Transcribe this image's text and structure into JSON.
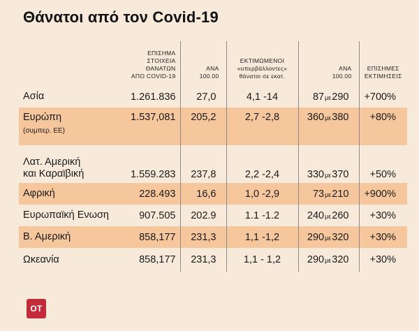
{
  "title": "Θάνατοι από τον Covid-19",
  "headers": [
    "",
    "ΕΠΙΣΗΜΑ ΣΤΟΙΧΕΙΑ ΘΑΝΑΤΩΝ ΑΠΟ COVID-19",
    "ΑΝΑ 100.00",
    "ΕΚΤΙΜΩΜΕΝΟΙ «υπερβάλλοντες» θάνατοι σε εκατ.",
    "ΑΝΑ 100.00",
    "ΕΠΙΣΗΜΕΣ ΕΚΤΙΜΗΣΕΙΣ"
  ],
  "header_parts": {
    "h1": [
      "ΕΠΙΣΗΜΑ",
      "ΣΤΟΙΧΕΙΑ",
      "ΘΑΝΑΤΩΝ",
      "ΑΠΟ COVID-19"
    ],
    "h2": [
      "ΑΝΑ",
      "100.00"
    ],
    "h3": [
      "ΕΚΤΙΜΩΜΕΝΟΙ",
      "«υπερβάλλοντες»",
      "θάνατοι σε εκατ."
    ],
    "h4": [
      "ΑΝΑ",
      "100.00"
    ],
    "h5": [
      "ΕΠΙΣΗΜΕΣ",
      "ΕΚΤΙΜΗΣΕΙΣ"
    ]
  },
  "connector": "με",
  "rows": [
    {
      "region": "Ασία",
      "region_sub": "",
      "official": "1.261.836",
      "per100k": "27,0",
      "excess": "4,1 -14",
      "per100k_low": "87",
      "per100k_high": "290",
      "estimates": "+700%",
      "shaded": false
    },
    {
      "region": "Ευρώπη",
      "region_sub": "(συμπερ. ΕΕ)",
      "official": "1.537,081",
      "per100k": "205,2",
      "excess": "2,7 -2,8",
      "per100k_low": "360",
      "per100k_high": "380",
      "estimates": "+80%",
      "shaded": true
    },
    {
      "region": "Λατ. Αμερική",
      "region_line2": "και Καραϊβική",
      "official": "1.559.283",
      "per100k": "237,8",
      "excess": "2,2 -2,4",
      "per100k_low": "330",
      "per100k_high": "370",
      "estimates": "+50%",
      "shaded": false
    },
    {
      "region": "Αφρική",
      "region_sub": "",
      "official": "228.493",
      "per100k": "16,6",
      "excess": "1,0 -2,9",
      "per100k_low": "73",
      "per100k_high": "210",
      "estimates": "+900%",
      "shaded": true
    },
    {
      "region": "Ευρωπαϊκή Ενωση",
      "region_sub": "",
      "official": "907.505",
      "per100k": "202.9",
      "excess": "1.1 -1.2",
      "per100k_low": "240",
      "per100k_high": "260",
      "estimates": "+30%",
      "shaded": false
    },
    {
      "region": "Β. Αμερική",
      "region_sub": "",
      "official": "858,177",
      "per100k": "231,3",
      "excess": "1,1 -1,2",
      "per100k_low": "290",
      "per100k_high": "320",
      "estimates": "+30%",
      "shaded": true
    },
    {
      "region": "Ωκεανία",
      "region_sub": "",
      "official": "858,177",
      "per100k": "231,3",
      "excess": "1,1 - 1,2",
      "per100k_low": "290",
      "per100k_high": "320",
      "estimates": "+30%",
      "shaded": false
    }
  ],
  "logo": "OT",
  "colors": {
    "background": "#f7eadb",
    "row_shade": "#f6c79d",
    "logo": "#c32a3a",
    "divider": "#8a8a8a"
  }
}
